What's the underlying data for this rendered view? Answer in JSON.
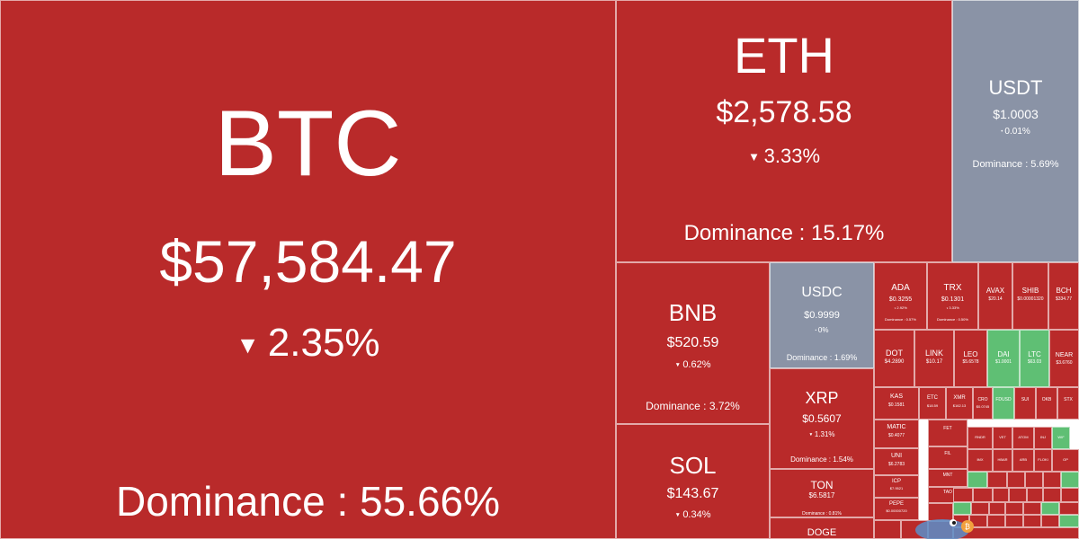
{
  "colors": {
    "down": "#b92a2a",
    "stable": "#8a93a6",
    "up": "#5fbf74"
  },
  "arrow": "▼",
  "dot": "•",
  "coins": [
    {
      "symbol": "BTC",
      "price": "$57,584.47",
      "change": "2.35%",
      "dominance": "Dominance : 55.66%"
    },
    {
      "symbol": "ETH",
      "price": "$2,578.58",
      "change": "3.33%",
      "dominance": "Dominance : 15.17%"
    },
    {
      "symbol": "USDT",
      "price": "$1.0003",
      "change": "0.01%",
      "dominance": "Dominance : 5.69%"
    },
    {
      "symbol": "BNB",
      "price": "$520.59",
      "change": "0.62%",
      "dominance": "Dominance : 3.72%"
    },
    {
      "symbol": "USDC",
      "price": "$0.9999",
      "change": "0%",
      "dominance": "Dominance : 1.69%"
    },
    {
      "symbol": "XRP",
      "price": "$0.5607",
      "change": "1.31%",
      "dominance": "Dominance : 1.54%"
    },
    {
      "symbol": "SOL",
      "price": "$143.67",
      "change": "0.34%",
      "dominance": ""
    },
    {
      "symbol": "TON",
      "price": "$6.5817",
      "change": "",
      "dominance": "Dominance : 0.81%"
    },
    {
      "symbol": "DOGE",
      "price": "",
      "change": "",
      "dominance": ""
    },
    {
      "symbol": "ADA",
      "price": "$0.3255",
      "change": "2.92%",
      "dominance": "Dominance : 0.57%"
    },
    {
      "symbol": "TRX",
      "price": "$0.1301",
      "change": "3.33%",
      "dominance": "Dominance : 0.50%"
    },
    {
      "symbol": "AVAX",
      "price": "$20.14",
      "change": "",
      "dominance": ""
    },
    {
      "symbol": "SHIB",
      "price": "$0.00001320",
      "change": "",
      "dominance": ""
    },
    {
      "symbol": "BCH",
      "price": "$334.77",
      "change": "",
      "dominance": ""
    },
    {
      "symbol": "DOT",
      "price": "$4.2890",
      "change": "",
      "dominance": ""
    },
    {
      "symbol": "LINK",
      "price": "$10.17",
      "change": "",
      "dominance": ""
    },
    {
      "symbol": "LEO",
      "price": "$5.6578",
      "change": "",
      "dominance": ""
    },
    {
      "symbol": "DAI",
      "price": "$1.0001",
      "change": "",
      "dominance": ""
    },
    {
      "symbol": "LTC",
      "price": "$63.03",
      "change": "",
      "dominance": ""
    },
    {
      "symbol": "NEAR",
      "price": "$3.6760",
      "change": "",
      "dominance": ""
    },
    {
      "symbol": "KAS",
      "price": "$0.1581",
      "change": "",
      "dominance": ""
    },
    {
      "symbol": "ETC",
      "price": "$18.59",
      "change": "",
      "dominance": ""
    },
    {
      "symbol": "XMR",
      "price": "$162.13",
      "change": "",
      "dominance": ""
    },
    {
      "symbol": "CRO",
      "price": "$0.0745",
      "change": "",
      "dominance": ""
    },
    {
      "symbol": "FDUSD",
      "price": "",
      "change": "",
      "dominance": ""
    },
    {
      "symbol": "SUI",
      "price": "",
      "change": "",
      "dominance": ""
    },
    {
      "symbol": "OKB",
      "price": "",
      "change": "",
      "dominance": ""
    },
    {
      "symbol": "STX",
      "price": "",
      "change": "",
      "dominance": ""
    },
    {
      "symbol": "FET",
      "price": "",
      "change": "",
      "dominance": ""
    },
    {
      "symbol": "MATIC",
      "price": "$0.4077",
      "change": "",
      "dominance": ""
    },
    {
      "symbol": "FIL",
      "price": "",
      "change": "",
      "dominance": ""
    },
    {
      "symbol": "UNI",
      "price": "$6.2783",
      "change": "",
      "dominance": ""
    },
    {
      "symbol": "ICP",
      "price": "$7.9521",
      "change": "",
      "dominance": ""
    },
    {
      "symbol": "PEPE",
      "price": "$0.00000720",
      "change": "",
      "dominance": ""
    },
    {
      "symbol": "MNT",
      "price": "",
      "change": "",
      "dominance": ""
    },
    {
      "symbol": "TAO",
      "price": "",
      "change": "",
      "dominance": ""
    },
    {
      "symbol": "RNDR",
      "price": "",
      "change": "",
      "dominance": ""
    },
    {
      "symbol": "ATOM",
      "price": "",
      "change": "",
      "dominance": ""
    },
    {
      "symbol": "VET",
      "price": "",
      "change": "",
      "dominance": ""
    },
    {
      "symbol": "INJ",
      "price": "",
      "change": "",
      "dominance": ""
    },
    {
      "symbol": "WIF",
      "price": "",
      "change": "",
      "dominance": ""
    },
    {
      "symbol": "IMX",
      "price": "",
      "change": "",
      "dominance": ""
    },
    {
      "symbol": "HBAR",
      "price": "",
      "change": "",
      "dominance": ""
    },
    {
      "symbol": "ARB",
      "price": "",
      "change": "",
      "dominance": ""
    },
    {
      "symbol": "FLOKI",
      "price": "",
      "change": "",
      "dominance": ""
    },
    {
      "symbol": "OP",
      "price": "",
      "change": "",
      "dominance": ""
    }
  ]
}
